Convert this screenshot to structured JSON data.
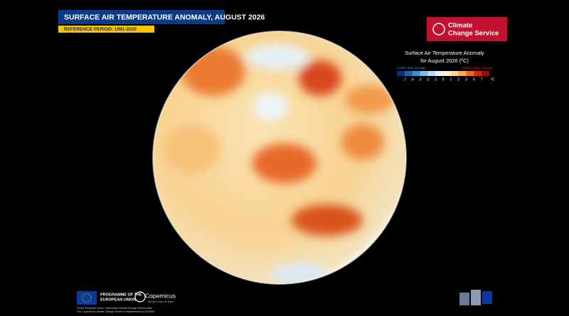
{
  "header": {
    "title": "SURFACE AIR TEMPERATURE ANOMALY, AUGUST 2026",
    "subtitle": "REFERENCE PERIOD: 1991-2020"
  },
  "logo": {
    "line1": "Climate",
    "line2": "Change Service"
  },
  "legend": {
    "title_line1": "Surface Air Temperature Anomaly",
    "title_line2": "for August 2026 (ºC)",
    "cooler": "Cooler than average",
    "warmer": "Warmer than average",
    "ticks": [
      "-7",
      "-5",
      "-3",
      "-2",
      "-1",
      "0",
      "1",
      "2",
      "3",
      "5",
      "7"
    ],
    "unit": "ºC",
    "colors": [
      "#08306b",
      "#1f63b0",
      "#3d8fd0",
      "#7cbde6",
      "#b9dcf2",
      "#e6f2fa",
      "#fdf1d6",
      "#fcd58e",
      "#f9a94f",
      "#ec6a26",
      "#cf2a18",
      "#8e0e0e"
    ]
  },
  "footer": {
    "programme_line1": "PROGRAMME OF THE",
    "programme_line2": "EUROPEAN UNION",
    "copernicus": "Copernicus",
    "copernicus_tagline": "Europe's eyes on Earth",
    "credit_line1": "Credit: European Union, Copernicus Climate Change Service data.",
    "credit_line2": "The Copernicus Climate Change Service is implemented by ECMWF"
  }
}
